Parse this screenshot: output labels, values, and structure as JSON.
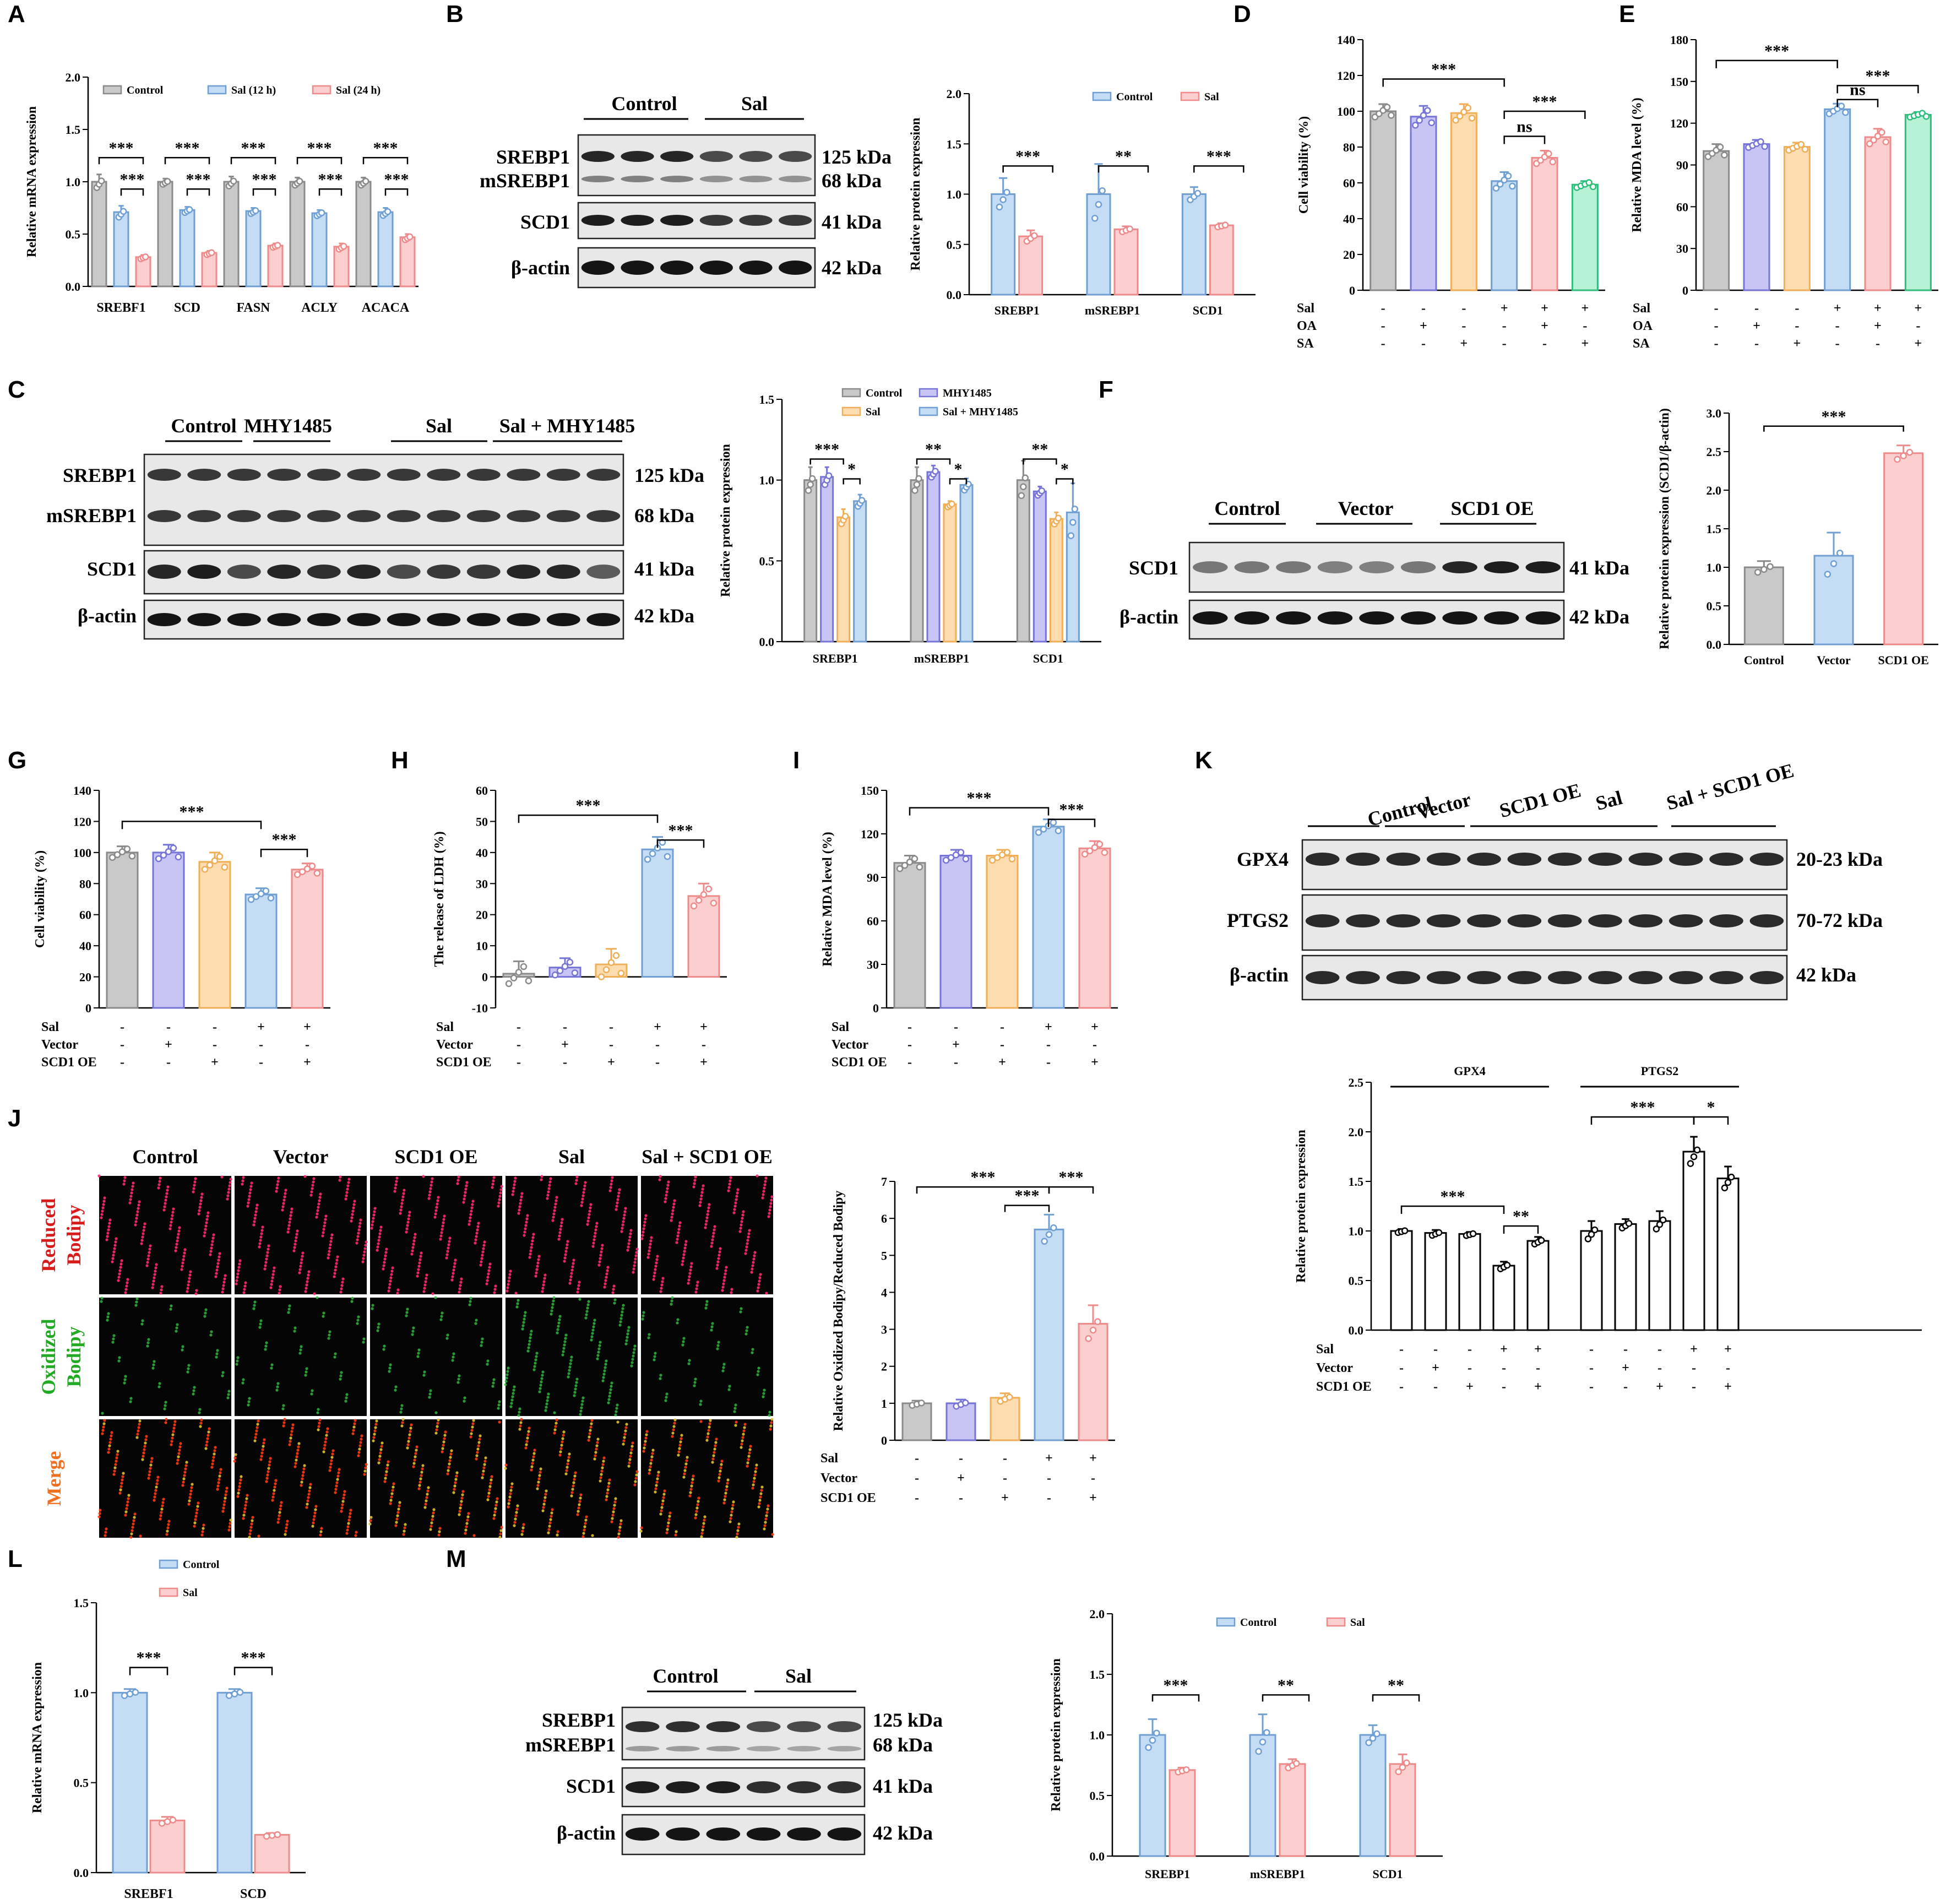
{
  "colors": {
    "gray": "#c9c9c9",
    "gray_s": "#8a8a8a",
    "blue": "#c4dcf4",
    "blue_s": "#6f9fd3",
    "pink": "#fbcfcf",
    "pink_s": "#ee8a8a",
    "purple": "#c8c5f5",
    "purple_s": "#7774d8",
    "orange": "#fddcb0",
    "orange_s": "#efae57",
    "green": "#b8f2d6",
    "green_s": "#2dbf7a",
    "white": "#ffffff",
    "black": "#000000"
  },
  "panels": {
    "A": {
      "label": "A"
    },
    "B": {
      "label": "B"
    },
    "C": {
      "label": "C"
    },
    "D": {
      "label": "D"
    },
    "E": {
      "label": "E"
    },
    "F": {
      "label": "F"
    },
    "G": {
      "label": "G"
    },
    "H": {
      "label": "H"
    },
    "I": {
      "label": "I"
    },
    "J": {
      "label": "J"
    },
    "K": {
      "label": "K"
    },
    "L": {
      "label": "L"
    },
    "M": {
      "label": "M"
    }
  },
  "blots": {
    "B": {
      "groups": [
        "Control",
        "Sal"
      ],
      "rows": [
        "SREBP1",
        "mSREBP1",
        "SCD1",
        "β-actin"
      ],
      "kda": [
        "125 kDa",
        "68 kDa",
        "41 kDa",
        "42 kDa"
      ]
    },
    "C": {
      "groups": [
        "Control",
        "MHY1485",
        "Sal",
        "Sal + MHY1485"
      ],
      "rows": [
        "SREBP1",
        "mSREBP1",
        "SCD1",
        "β-actin"
      ],
      "kda": [
        "125 kDa",
        "68 kDa",
        "41 kDa",
        "42 kDa"
      ]
    },
    "F": {
      "groups": [
        "Control",
        "Vector",
        "SCD1 OE"
      ],
      "rows": [
        "SCD1",
        "β-actin"
      ],
      "kda": [
        "41 kDa",
        "42 kDa"
      ]
    },
    "K": {
      "groups": [
        "Control",
        "Vector",
        "SCD1 OE",
        "Sal",
        "Sal + SCD1 OE"
      ],
      "rows": [
        "GPX4",
        "PTGS2",
        "β-actin"
      ],
      "kda": [
        "20-23 kDa",
        "70-72 kDa",
        "42 kDa"
      ]
    },
    "M": {
      "groups": [
        "Control",
        "Sal"
      ],
      "rows": [
        "SREBP1",
        "mSREBP1",
        "SCD1",
        "β-actin"
      ],
      "kda": [
        "125 kDa",
        "68 kDa",
        "41 kDa",
        "42 kDa"
      ]
    }
  },
  "images_J": {
    "columns": [
      "Control",
      "Vector",
      "SCD1 OE",
      "Sal",
      "Sal + SCD1 OE"
    ],
    "rows": [
      [
        "Reduced",
        "Bodipy"
      ],
      [
        "Oxidized",
        "Bodipy"
      ],
      [
        "Merge"
      ]
    ]
  },
  "chart_data": [
    {
      "id": "A",
      "type": "bar",
      "categories": [
        "SREBF1",
        "SCD",
        "FASN",
        "ACLY",
        "ACACA"
      ],
      "ylabel": "Relative mRNA expression",
      "ylim": [
        0,
        2.0
      ],
      "yticks": [
        "0.0",
        "0.5",
        "1.0",
        "1.5",
        "2.0"
      ],
      "series": [
        {
          "name": "Control",
          "values": [
            1.0,
            1.0,
            1.0,
            1.0,
            1.0
          ],
          "sd": [
            0.07,
            0.03,
            0.05,
            0.04,
            0.04
          ]
        },
        {
          "name": "Sal (12 h)",
          "values": [
            0.71,
            0.73,
            0.72,
            0.7,
            0.71
          ],
          "sd": [
            0.06,
            0.03,
            0.03,
            0.03,
            0.04
          ]
        },
        {
          "name": "Sal (24 h)",
          "values": [
            0.28,
            0.32,
            0.39,
            0.38,
            0.47
          ],
          "sd": [
            0.02,
            0.02,
            0.02,
            0.03,
            0.03
          ]
        }
      ],
      "sig": [
        {
          "text": "***"
        },
        {
          "text": "***"
        },
        {
          "text": "***"
        },
        {
          "text": "***"
        },
        {
          "text": "***"
        },
        {
          "text": "***"
        },
        {
          "text": "***"
        },
        {
          "text": "***"
        },
        {
          "text": "***"
        },
        {
          "text": "***"
        }
      ]
    },
    {
      "id": "B",
      "type": "bar",
      "categories": [
        "SREBP1",
        "mSREBP1",
        "SCD1"
      ],
      "ylabel": "Relative protein expression",
      "ylim": [
        0,
        2.0
      ],
      "yticks": [
        "0.0",
        "0.5",
        "1.0",
        "1.5",
        "2.0"
      ],
      "series": [
        {
          "name": "Control",
          "values": [
            1.0,
            1.0,
            1.0
          ],
          "sd": [
            0.16,
            0.3,
            0.07
          ]
        },
        {
          "name": "Sal",
          "values": [
            0.58,
            0.65,
            0.69
          ],
          "sd": [
            0.06,
            0.03,
            0.02
          ]
        }
      ],
      "sig": [
        {
          "text": "***"
        },
        {
          "text": "**"
        },
        {
          "text": "***"
        }
      ]
    },
    {
      "id": "C",
      "type": "bar",
      "categories": [
        "SREBP1",
        "mSREBP1",
        "SCD1"
      ],
      "ylabel": "Relative protein expression",
      "ylim": [
        0,
        1.5
      ],
      "yticks": [
        "0.0",
        "0.5",
        "1.0",
        "1.5"
      ],
      "series": [
        {
          "name": "Control",
          "values": [
            1.0,
            1.0,
            1.0
          ],
          "sd": [
            0.08,
            0.08,
            0.12
          ]
        },
        {
          "name": "MHY1485",
          "values": [
            1.02,
            1.05,
            0.93
          ],
          "sd": [
            0.06,
            0.04,
            0.03
          ]
        },
        {
          "name": "Sal",
          "values": [
            0.77,
            0.85,
            0.76
          ],
          "sd": [
            0.05,
            0.02,
            0.04
          ]
        },
        {
          "name": "Sal + MHY1485",
          "values": [
            0.87,
            0.97,
            0.8
          ],
          "sd": [
            0.04,
            0.04,
            0.18
          ]
        }
      ],
      "sig": [
        {
          "text": "***"
        },
        {
          "text": "*"
        },
        {
          "text": "**"
        },
        {
          "text": "*"
        },
        {
          "text": "**"
        },
        {
          "text": "*"
        }
      ]
    },
    {
      "id": "D",
      "type": "bar",
      "categories": [
        "1",
        "2",
        "3",
        "4",
        "5",
        "6"
      ],
      "ylabel": "Cell viability (%)",
      "ylim": [
        0,
        140
      ],
      "yticks": [
        "0",
        "20",
        "40",
        "60",
        "80",
        "100",
        "120",
        "140"
      ],
      "values": [
        100,
        97,
        99,
        61,
        74,
        59
      ],
      "sd": [
        4,
        6,
        5,
        5,
        4,
        2
      ],
      "conditions": [
        {
          "name": "Sal",
          "marks": [
            "-",
            "-",
            "-",
            "+",
            "+",
            "+"
          ]
        },
        {
          "name": "OA",
          "marks": [
            "-",
            "+",
            "-",
            "-",
            "+",
            "-"
          ]
        },
        {
          "name": "SA",
          "marks": [
            "-",
            "-",
            "+",
            "-",
            "-",
            "+"
          ]
        }
      ],
      "sig": [
        {
          "text": "***"
        },
        {
          "text": "***"
        },
        {
          "text": "ns"
        }
      ]
    },
    {
      "id": "E",
      "type": "bar",
      "categories": [
        "1",
        "2",
        "3",
        "4",
        "5",
        "6"
      ],
      "ylabel": "Relative MDA level (%)",
      "ylim": [
        0,
        180
      ],
      "yticks": [
        "0",
        "30",
        "60",
        "90",
        "120",
        "150",
        "180"
      ],
      "values": [
        100,
        105,
        103,
        130,
        110,
        126
      ],
      "sd": [
        5,
        3,
        3,
        4,
        6,
        2
      ],
      "conditions": [
        {
          "name": "Sal",
          "marks": [
            "-",
            "-",
            "-",
            "+",
            "+",
            "+"
          ]
        },
        {
          "name": "OA",
          "marks": [
            "-",
            "+",
            "-",
            "-",
            "+",
            "-"
          ]
        },
        {
          "name": "SA",
          "marks": [
            "-",
            "-",
            "+",
            "-",
            "-",
            "+"
          ]
        }
      ],
      "sig": [
        {
          "text": "***"
        },
        {
          "text": "***"
        },
        {
          "text": "ns"
        }
      ]
    },
    {
      "id": "F",
      "type": "bar",
      "categories": [
        "Control",
        "Vector",
        "SCD1 OE"
      ],
      "ylabel": "Relative protein expression (SCD1/β-actin)",
      "ylim": [
        0,
        3.0
      ],
      "yticks": [
        "0.0",
        "0.5",
        "1.0",
        "1.5",
        "2.0",
        "2.5",
        "3.0"
      ],
      "values": [
        1.0,
        1.15,
        2.48
      ],
      "sd": [
        0.08,
        0.3,
        0.1
      ],
      "sig": [
        {
          "text": "***"
        }
      ]
    },
    {
      "id": "G",
      "type": "bar",
      "categories": [
        "1",
        "2",
        "3",
        "4",
        "5"
      ],
      "ylabel": "Cell viability (%)",
      "ylim": [
        0,
        140
      ],
      "yticks": [
        "0",
        "20",
        "40",
        "60",
        "80",
        "100",
        "120",
        "140"
      ],
      "values": [
        100,
        100,
        94,
        73,
        89
      ],
      "sd": [
        4,
        5,
        6,
        4,
        4
      ],
      "conditions": [
        {
          "name": "Sal",
          "marks": [
            "-",
            "-",
            "-",
            "+",
            "+"
          ]
        },
        {
          "name": "Vector",
          "marks": [
            "-",
            "+",
            "-",
            "-",
            "-"
          ]
        },
        {
          "name": "SCD1 OE",
          "marks": [
            "-",
            "-",
            "+",
            "-",
            "+"
          ]
        }
      ],
      "sig": [
        {
          "text": "***"
        },
        {
          "text": "***"
        }
      ]
    },
    {
      "id": "H",
      "type": "bar",
      "categories": [
        "1",
        "2",
        "3",
        "4",
        "5"
      ],
      "ylabel": "The release of LDH (%)",
      "ylim": [
        -10,
        60
      ],
      "yticks": [
        "-10",
        "0",
        "10",
        "20",
        "30",
        "40",
        "50",
        "60"
      ],
      "values": [
        1,
        3,
        4,
        41,
        26
      ],
      "sd": [
        4,
        3,
        5,
        4,
        4
      ],
      "conditions": [
        {
          "name": "Sal",
          "marks": [
            "-",
            "-",
            "-",
            "+",
            "+"
          ]
        },
        {
          "name": "Vector",
          "marks": [
            "-",
            "+",
            "-",
            "-",
            "-"
          ]
        },
        {
          "name": "SCD1 OE",
          "marks": [
            "-",
            "-",
            "+",
            "-",
            "+"
          ]
        }
      ],
      "sig": [
        {
          "text": "***"
        },
        {
          "text": "***"
        }
      ]
    },
    {
      "id": "I",
      "type": "bar",
      "categories": [
        "1",
        "2",
        "3",
        "4",
        "5"
      ],
      "ylabel": "Relative MDA level (%)",
      "ylim": [
        0,
        150
      ],
      "yticks": [
        "0",
        "30",
        "60",
        "90",
        "120",
        "150"
      ],
      "values": [
        100,
        105,
        105,
        125,
        110
      ],
      "sd": [
        5,
        4,
        4,
        5,
        5
      ],
      "conditions": [
        {
          "name": "Sal",
          "marks": [
            "-",
            "-",
            "-",
            "+",
            "+"
          ]
        },
        {
          "name": "Vector",
          "marks": [
            "-",
            "+",
            "-",
            "-",
            "-"
          ]
        },
        {
          "name": "SCD1 OE",
          "marks": [
            "-",
            "-",
            "+",
            "-",
            "+"
          ]
        }
      ],
      "sig": [
        {
          "text": "***"
        },
        {
          "text": "***"
        }
      ]
    },
    {
      "id": "J",
      "type": "bar",
      "categories": [
        "1",
        "2",
        "3",
        "4",
        "5"
      ],
      "ylabel": "Relative Oxidized Bodipy/Reduced Bodipy",
      "ylim": [
        0,
        7
      ],
      "yticks": [
        "0",
        "1",
        "2",
        "3",
        "4",
        "5",
        "6",
        "7"
      ],
      "values": [
        1.0,
        1.0,
        1.15,
        5.7,
        3.15
      ],
      "sd": [
        0.07,
        0.1,
        0.12,
        0.4,
        0.5
      ],
      "conditions": [
        {
          "name": "Sal",
          "marks": [
            "-",
            "-",
            "-",
            "+",
            "+"
          ]
        },
        {
          "name": "Vector",
          "marks": [
            "-",
            "+",
            "-",
            "-",
            "-"
          ]
        },
        {
          "name": "SCD1 OE",
          "marks": [
            "-",
            "-",
            "+",
            "-",
            "+"
          ]
        }
      ],
      "sig": [
        {
          "text": "***"
        },
        {
          "text": "***"
        },
        {
          "text": "***"
        }
      ]
    },
    {
      "id": "K",
      "type": "bar",
      "ylabel": "Relative protein expression",
      "ylim": [
        0,
        2.5
      ],
      "yticks": [
        "0.0",
        "0.5",
        "1.0",
        "1.5",
        "2.0",
        "2.5"
      ],
      "groups": [
        "GPX4",
        "PTGS2"
      ],
      "values": [
        1.0,
        0.98,
        0.97,
        0.65,
        0.9,
        1.0,
        1.07,
        1.1,
        1.8,
        1.53
      ],
      "sd": [
        0.02,
        0.03,
        0.02,
        0.04,
        0.04,
        0.1,
        0.05,
        0.1,
        0.15,
        0.12
      ],
      "conditions": [
        {
          "name": "Sal",
          "marks": [
            "-",
            "-",
            "-",
            "+",
            "+",
            "-",
            "-",
            "-",
            "+",
            "+"
          ]
        },
        {
          "name": "Vector",
          "marks": [
            "-",
            "+",
            "-",
            "-",
            "-",
            "-",
            "+",
            "-",
            "-",
            "-"
          ]
        },
        {
          "name": "SCD1 OE",
          "marks": [
            "-",
            "-",
            "+",
            "-",
            "+",
            "-",
            "-",
            "+",
            "-",
            "+"
          ]
        }
      ],
      "sig": [
        {
          "text": "***"
        },
        {
          "text": "**"
        },
        {
          "text": "***"
        },
        {
          "text": "*"
        }
      ]
    },
    {
      "id": "L",
      "type": "bar",
      "categories": [
        "SREBF1",
        "SCD"
      ],
      "ylabel": "Relative mRNA expression",
      "ylim": [
        0,
        1.5
      ],
      "yticks": [
        "0.0",
        "0.5",
        "1.0",
        "1.5"
      ],
      "series": [
        {
          "name": "Control",
          "values": [
            1.0,
            1.0
          ],
          "sd": [
            0.02,
            0.02
          ]
        },
        {
          "name": "Sal",
          "values": [
            0.29,
            0.21
          ],
          "sd": [
            0.02,
            0.01
          ]
        }
      ],
      "sig": [
        {
          "text": "***"
        },
        {
          "text": "***"
        }
      ]
    },
    {
      "id": "M",
      "type": "bar",
      "categories": [
        "SREBP1",
        "mSREBP1",
        "SCD1"
      ],
      "ylabel": "Relative protein expression",
      "ylim": [
        0,
        2.0
      ],
      "yticks": [
        "0.0",
        "0.5",
        "1.0",
        "1.5",
        "2.0"
      ],
      "series": [
        {
          "name": "Control",
          "values": [
            1.0,
            1.0,
            1.0
          ],
          "sd": [
            0.13,
            0.17,
            0.08
          ]
        },
        {
          "name": "Sal",
          "values": [
            0.71,
            0.76,
            0.76
          ],
          "sd": [
            0.02,
            0.04,
            0.08
          ]
        }
      ],
      "sig": [
        {
          "text": "***"
        },
        {
          "text": "**"
        },
        {
          "text": "**"
        }
      ]
    }
  ]
}
